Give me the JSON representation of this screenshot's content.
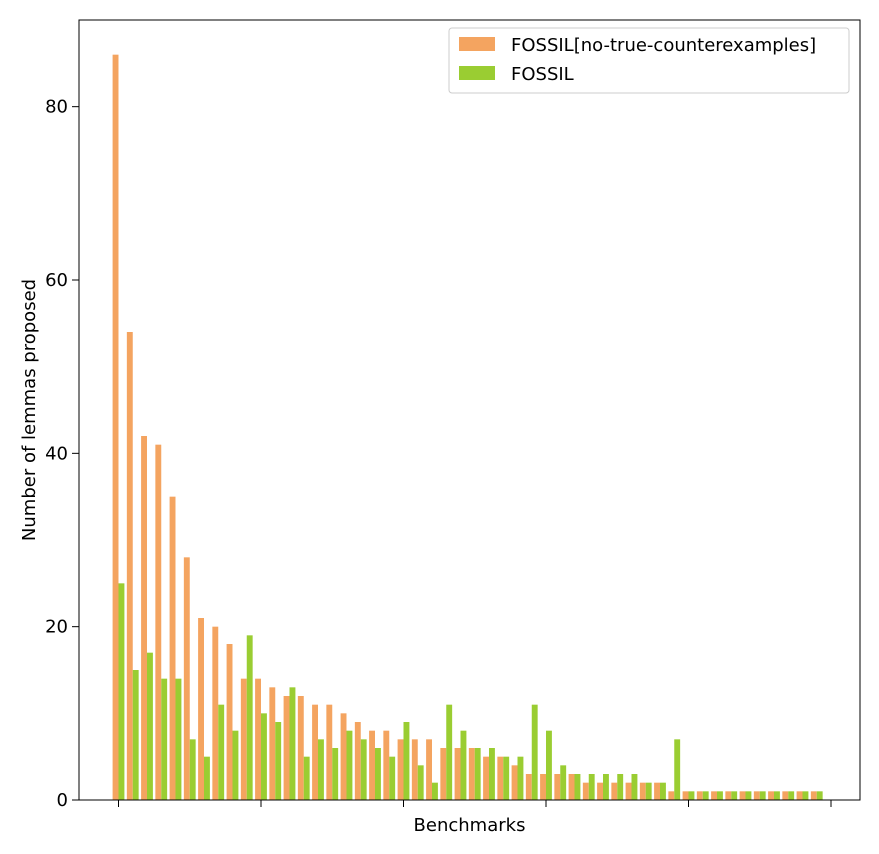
{
  "chart_data": {
    "type": "bar",
    "title": "",
    "xlabel": "Benchmarks",
    "ylabel": "Number of lemmas proposed",
    "ylim": [
      0,
      90
    ],
    "yticks": [
      0,
      20,
      40,
      60,
      80
    ],
    "x_tick_labels_shown": false,
    "legend_position": "upper right",
    "grid": false,
    "series": [
      {
        "name": "FOSSIL[no-true-counterexamples]",
        "color": "#f4a460",
        "values": [
          86,
          54,
          42,
          41,
          35,
          28,
          21,
          20,
          18,
          14,
          14,
          13,
          12,
          12,
          11,
          11,
          10,
          9,
          8,
          8,
          7,
          7,
          7,
          6,
          6,
          6,
          5,
          5,
          4,
          3,
          3,
          3,
          3,
          2,
          2,
          2,
          2,
          2,
          2,
          1,
          1,
          1,
          1,
          1,
          1,
          1,
          1,
          1,
          1,
          1
        ]
      },
      {
        "name": "FOSSIL",
        "color": "#9acd32",
        "values": [
          25,
          15,
          17,
          14,
          14,
          7,
          5,
          11,
          8,
          19,
          10,
          9,
          13,
          5,
          7,
          6,
          8,
          7,
          6,
          5,
          9,
          4,
          2,
          11,
          8,
          6,
          6,
          5,
          5,
          11,
          8,
          4,
          3,
          3,
          3,
          3,
          3,
          2,
          2,
          7,
          1,
          1,
          1,
          1,
          1,
          1,
          1,
          1,
          1,
          1
        ]
      }
    ]
  }
}
